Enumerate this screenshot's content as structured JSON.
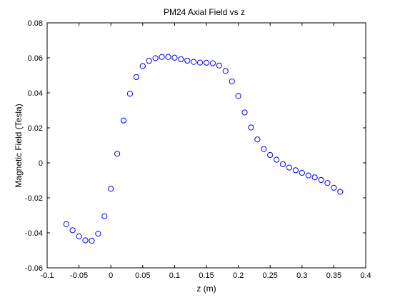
{
  "chart_data": {
    "type": "scatter",
    "title": "PM24 Axial Field vs z",
    "xlabel": "z (m)",
    "ylabel": "Magnetic Field (Tesla)",
    "xlim": [
      -0.1,
      0.4
    ],
    "ylim": [
      -0.06,
      0.08
    ],
    "xticks": [
      -0.1,
      -0.05,
      0,
      0.05,
      0.1,
      0.15,
      0.2,
      0.25,
      0.3,
      0.35,
      0.4
    ],
    "xtick_labels": [
      "-0.1",
      "-0.05",
      "0",
      "0.05",
      "0.1",
      "0.15",
      "0.2",
      "0.25",
      "0.3",
      "0.35",
      "0.4"
    ],
    "yticks": [
      -0.06,
      -0.04,
      -0.02,
      0,
      0.02,
      0.04,
      0.06,
      0.08
    ],
    "ytick_labels": [
      "-0.06",
      "-0.04",
      "-0.02",
      "0",
      "0.02",
      "0.04",
      "0.06",
      "0.08"
    ],
    "grid": false,
    "marker": "open-circle",
    "marker_color": "#0000ff",
    "series": [
      {
        "x": [
          -0.07,
          -0.06,
          -0.05,
          -0.04,
          -0.03,
          -0.02,
          -0.01,
          0.0,
          0.01,
          0.02,
          0.03,
          0.04,
          0.05,
          0.06,
          0.07,
          0.08,
          0.09,
          0.1,
          0.11,
          0.12,
          0.13,
          0.14,
          0.15,
          0.16,
          0.17,
          0.18,
          0.19,
          0.2,
          0.21,
          0.22,
          0.23,
          0.24,
          0.25,
          0.26,
          0.27,
          0.28,
          0.29,
          0.3,
          0.31,
          0.32,
          0.33,
          0.34,
          0.35,
          0.36
        ],
        "y": [
          -0.035,
          -0.0385,
          -0.042,
          -0.0443,
          -0.0445,
          -0.0405,
          -0.0305,
          -0.0148,
          0.0052,
          0.0242,
          0.0395,
          0.049,
          0.0553,
          0.0583,
          0.0598,
          0.0605,
          0.0605,
          0.0601,
          0.0592,
          0.0584,
          0.0577,
          0.0573,
          0.0572,
          0.0569,
          0.0556,
          0.0525,
          0.0465,
          0.0382,
          0.0288,
          0.0202,
          0.0134,
          0.0079,
          0.0045,
          0.0018,
          -0.0008,
          -0.0027,
          -0.0042,
          -0.0057,
          -0.0072,
          -0.0083,
          -0.0098,
          -0.0115,
          -0.0142,
          -0.0165
        ]
      }
    ]
  }
}
